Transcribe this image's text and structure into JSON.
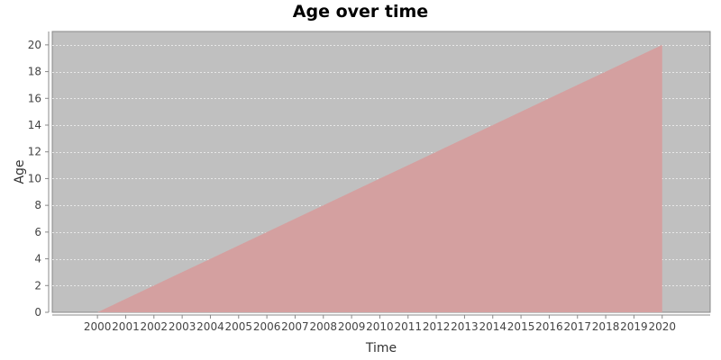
{
  "chart_data": {
    "type": "area",
    "title": "Age over time",
    "xlabel": "Time",
    "ylabel": "Age",
    "x": [
      2000,
      2001,
      2002,
      2003,
      2004,
      2005,
      2006,
      2007,
      2008,
      2009,
      2010,
      2011,
      2012,
      2013,
      2014,
      2015,
      2016,
      2017,
      2018,
      2019,
      2020
    ],
    "series": [
      {
        "values": [
          0,
          1,
          2,
          3,
          4,
          5,
          6,
          7,
          8,
          9,
          10,
          11,
          12,
          13,
          14,
          15,
          16,
          17,
          18,
          19,
          20
        ]
      }
    ],
    "xlim": [
      1998.4,
      2021.7
    ],
    "ylim": [
      0,
      21
    ],
    "xticks": [
      "2000",
      "2001",
      "2002",
      "2003",
      "2004",
      "2005",
      "2006",
      "2007",
      "2008",
      "2009",
      "2010",
      "2011",
      "2012",
      "2013",
      "2014",
      "2015",
      "2016",
      "2017",
      "2018",
      "2019",
      "2020"
    ],
    "yticks": [
      "0",
      "2",
      "4",
      "6",
      "8",
      "10",
      "12",
      "14",
      "16",
      "18",
      "20"
    ],
    "grid": true,
    "colors": {
      "plot_background": "#c0c0c0",
      "area_fill": "#d4a0a0",
      "gridline": "#e8e8e8",
      "axis": "#888888"
    }
  }
}
